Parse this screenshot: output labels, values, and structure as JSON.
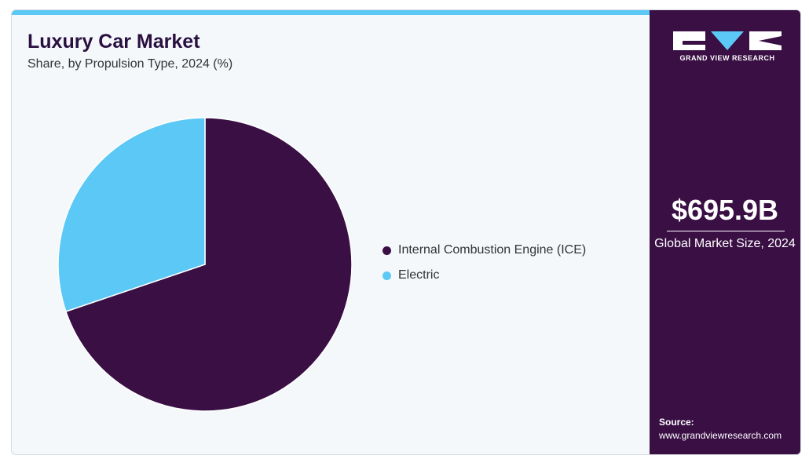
{
  "header": {
    "title": "Luxury Car Market",
    "subtitle": "Share, by Propulsion Type, 2024 (%)"
  },
  "sidebar": {
    "brand": "GRAND VIEW RESEARCH",
    "market_size": "$695.9B",
    "market_label": "Global Market Size, 2024",
    "source_label": "Source:",
    "source_url": "www.grandviewresearch.com"
  },
  "colors": {
    "ice": "#390f44",
    "electric": "#5bc8f5",
    "sidebar_bg": "#390f44",
    "accent": "#5bc8f5"
  },
  "chart_data": {
    "type": "pie",
    "title": "Luxury Car Market",
    "subtitle": "Share, by Propulsion Type, 2024 (%)",
    "legend_position": "right",
    "categories": [
      "Internal Combustion Engine (ICE)",
      "Electric"
    ],
    "values": [
      69.8,
      30.2
    ],
    "colors": [
      "#390f44",
      "#5bc8f5"
    ]
  }
}
